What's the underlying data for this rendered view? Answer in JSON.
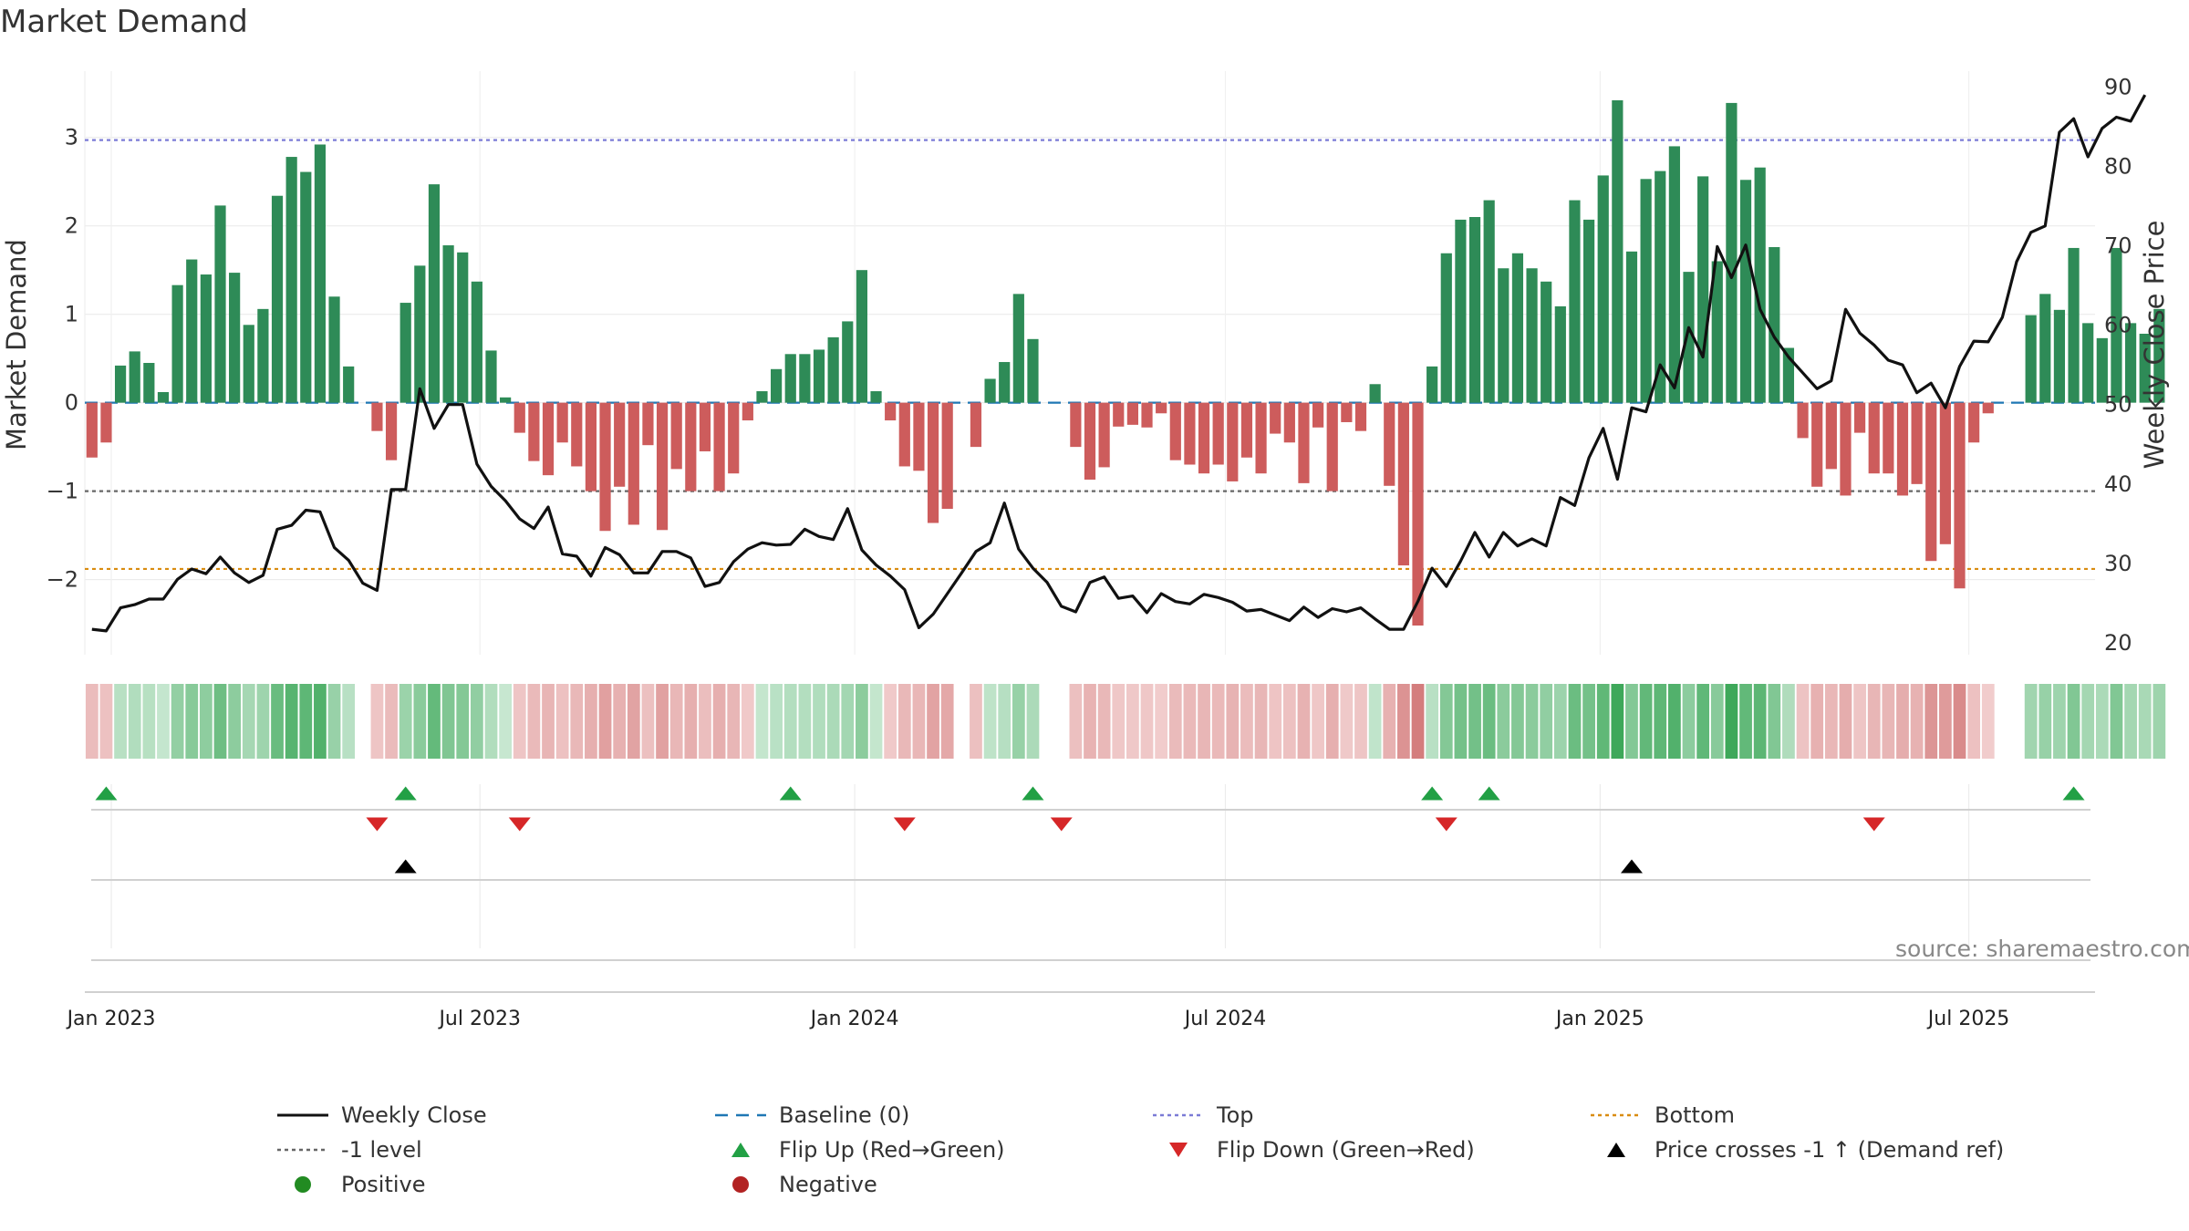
{
  "title": "Market Demand",
  "source_text": "source: sharemaestro.com",
  "chart_data": {
    "type": "bar",
    "title": "Market Demand",
    "ylabel": "Market Demand",
    "y2label": "Weekly Close Price",
    "ylim": [
      -2.85,
      3.75
    ],
    "y2lim": [
      18.5,
      92.0
    ],
    "yticks": [
      -2,
      -1,
      0,
      1,
      2,
      3
    ],
    "yticks_labels": [
      "−2",
      "−1",
      "0",
      "1",
      "2",
      "3"
    ],
    "y2ticks": [
      20,
      30,
      40,
      50,
      60,
      70,
      80,
      90
    ],
    "x_start": "2022-12-19",
    "x_end": "2025-09-01",
    "week_step_days": 7,
    "x_ticks": [
      {
        "date": "2023-01-01",
        "label": "Jan 2023"
      },
      {
        "date": "2023-07-01",
        "label": "Jul 2023"
      },
      {
        "date": "2024-01-01",
        "label": "Jan 2024"
      },
      {
        "date": "2024-07-01",
        "label": "Jul 2024"
      },
      {
        "date": "2025-01-01",
        "label": "Jan 2025"
      },
      {
        "date": "2025-07-01",
        "label": "Jul 2025"
      }
    ],
    "reference_lines": {
      "top": 2.97,
      "minus_one": -1.0,
      "bottom": -1.88,
      "baseline": 0
    },
    "colors": {
      "positive": "#2e8b57",
      "negative": "#cd5c5c",
      "price": "#111111",
      "top": "#7b7bd6",
      "minus_one": "#666666",
      "bottom": "#d98c10",
      "baseline": "#1f77b4",
      "flip_up": "#22a045",
      "flip_down": "#d62728",
      "cross": "#000000",
      "positive_dot": "#228b22",
      "negative_dot": "#b22222"
    },
    "demand": [
      -0.62,
      -0.45,
      0.42,
      0.58,
      0.45,
      0.12,
      1.33,
      1.62,
      1.45,
      2.23,
      1.47,
      0.88,
      1.06,
      2.34,
      2.78,
      2.61,
      2.92,
      1.2,
      0.41,
      0.0,
      -0.32,
      -0.65,
      1.13,
      1.55,
      2.47,
      1.78,
      1.7,
      1.37,
      0.59,
      0.06,
      -0.34,
      -0.66,
      -0.82,
      -0.45,
      -0.72,
      -1.0,
      -1.45,
      -0.95,
      -1.38,
      -0.48,
      -1.44,
      -0.75,
      -1.0,
      -0.55,
      -1.0,
      -0.8,
      -0.2,
      0.13,
      0.38,
      0.55,
      0.55,
      0.6,
      0.74,
      0.92,
      1.5,
      0.13,
      -0.2,
      -0.72,
      -0.77,
      -1.36,
      -1.2,
      0.0,
      -0.5,
      0.27,
      0.46,
      1.23,
      0.72,
      0.0,
      0.0,
      -0.5,
      -0.87,
      -0.73,
      -0.27,
      -0.25,
      -0.28,
      -0.12,
      -0.65,
      -0.7,
      -0.8,
      -0.7,
      -0.89,
      -0.62,
      -0.8,
      -0.35,
      -0.45,
      -0.91,
      -0.28,
      -1.0,
      -0.22,
      -0.32,
      0.21,
      -0.94,
      -1.84,
      -2.52,
      0.41,
      1.69,
      2.07,
      2.1,
      2.29,
      1.52,
      1.69,
      1.52,
      1.37,
      1.09,
      2.29,
      2.07,
      2.57,
      3.42,
      1.71,
      2.53,
      2.62,
      2.9,
      1.48,
      2.56,
      1.6,
      3.39,
      2.52,
      2.66,
      1.76,
      0.62,
      -0.4,
      -0.95,
      -0.75,
      -1.05,
      -0.34,
      -0.8,
      -0.8,
      -1.05,
      -0.92,
      -1.79,
      -1.6,
      -2.1,
      -0.45,
      -0.12,
      0.0,
      0.0,
      0.99,
      1.23,
      1.05,
      1.75,
      0.9,
      0.73,
      1.75,
      0.9,
      0.78,
      1.06
    ],
    "price": [
      21.7,
      21.5,
      24.4,
      24.8,
      25.5,
      25.5,
      28.0,
      29.3,
      28.7,
      30.8,
      28.8,
      27.6,
      28.5,
      34.3,
      34.8,
      36.7,
      36.5,
      32.0,
      30.4,
      27.5,
      26.6,
      39.3,
      39.3,
      52.0,
      47.0,
      50.0,
      50.0,
      42.5,
      39.7,
      37.9,
      35.6,
      34.4,
      37.1,
      31.2,
      30.9,
      28.4,
      32.0,
      31.1,
      28.8,
      28.8,
      31.5,
      31.5,
      30.7,
      27.1,
      27.6,
      30.2,
      31.8,
      32.6,
      32.3,
      32.4,
      34.3,
      33.4,
      33.0,
      36.9,
      31.7,
      29.8,
      28.4,
      26.7,
      21.9,
      23.6,
      26.2,
      28.8,
      31.5,
      32.6,
      37.6,
      31.8,
      29.4,
      27.6,
      24.6,
      23.9,
      27.6,
      28.3,
      25.6,
      25.9,
      23.8,
      26.2,
      25.2,
      24.9,
      26.1,
      25.7,
      25.1,
      24.0,
      24.2,
      23.5,
      22.8,
      24.5,
      23.2,
      24.3,
      23.9,
      24.4,
      23.0,
      21.7,
      21.7,
      25.2,
      29.4,
      27.1,
      30.3,
      33.9,
      30.8,
      33.9,
      32.2,
      33.1,
      32.2,
      38.3,
      37.3,
      43.3,
      47.0,
      40.6,
      49.6,
      49.1,
      55.0,
      52.1,
      59.7,
      56.0,
      69.9,
      66.0,
      70.1,
      62.0,
      58.5,
      56.0,
      54.0,
      52.0,
      53.0,
      62.0,
      59.0,
      57.5,
      55.6,
      55.0,
      51.5,
      52.7,
      49.6,
      54.8,
      58.0,
      57.9,
      61.0,
      68.0,
      71.7,
      72.5,
      84.3,
      86.0,
      81.2,
      84.8,
      86.2,
      85.7,
      89.0
    ],
    "flip_up_weeks": [
      1,
      22,
      49,
      66,
      94,
      98,
      139
    ],
    "flip_down_weeks": [
      20,
      30,
      57,
      68,
      95,
      125
    ],
    "price_cross_weeks": [
      22,
      108
    ]
  },
  "legend": [
    {
      "key": "weekly_close",
      "label": "Weekly Close",
      "symbol": "solid-line",
      "color": "#111111"
    },
    {
      "key": "baseline",
      "label": "Baseline (0)",
      "symbol": "dashed-line",
      "color": "#1f77b4"
    },
    {
      "key": "top",
      "label": "Top",
      "symbol": "dotted-line",
      "color": "#7b7bd6"
    },
    {
      "key": "bottom",
      "label": "Bottom",
      "symbol": "dotted-line",
      "color": "#d98c10"
    },
    {
      "key": "minus_one",
      "label": "-1 level",
      "symbol": "dotted-line",
      "color": "#666666"
    },
    {
      "key": "flip_up",
      "label": "Flip Up (Red→Green)",
      "symbol": "triangle-up",
      "color": "#22a045"
    },
    {
      "key": "flip_down",
      "label": "Flip Down (Green→Red)",
      "symbol": "triangle-down",
      "color": "#d62728"
    },
    {
      "key": "price_cross",
      "label": "Price crosses -1 ↑ (Demand ref)",
      "symbol": "triangle-up",
      "color": "#000000"
    },
    {
      "key": "positive",
      "label": "Positive",
      "symbol": "dot",
      "color": "#228b22"
    },
    {
      "key": "negative",
      "label": "Negative",
      "symbol": "dot",
      "color": "#b22222"
    }
  ]
}
